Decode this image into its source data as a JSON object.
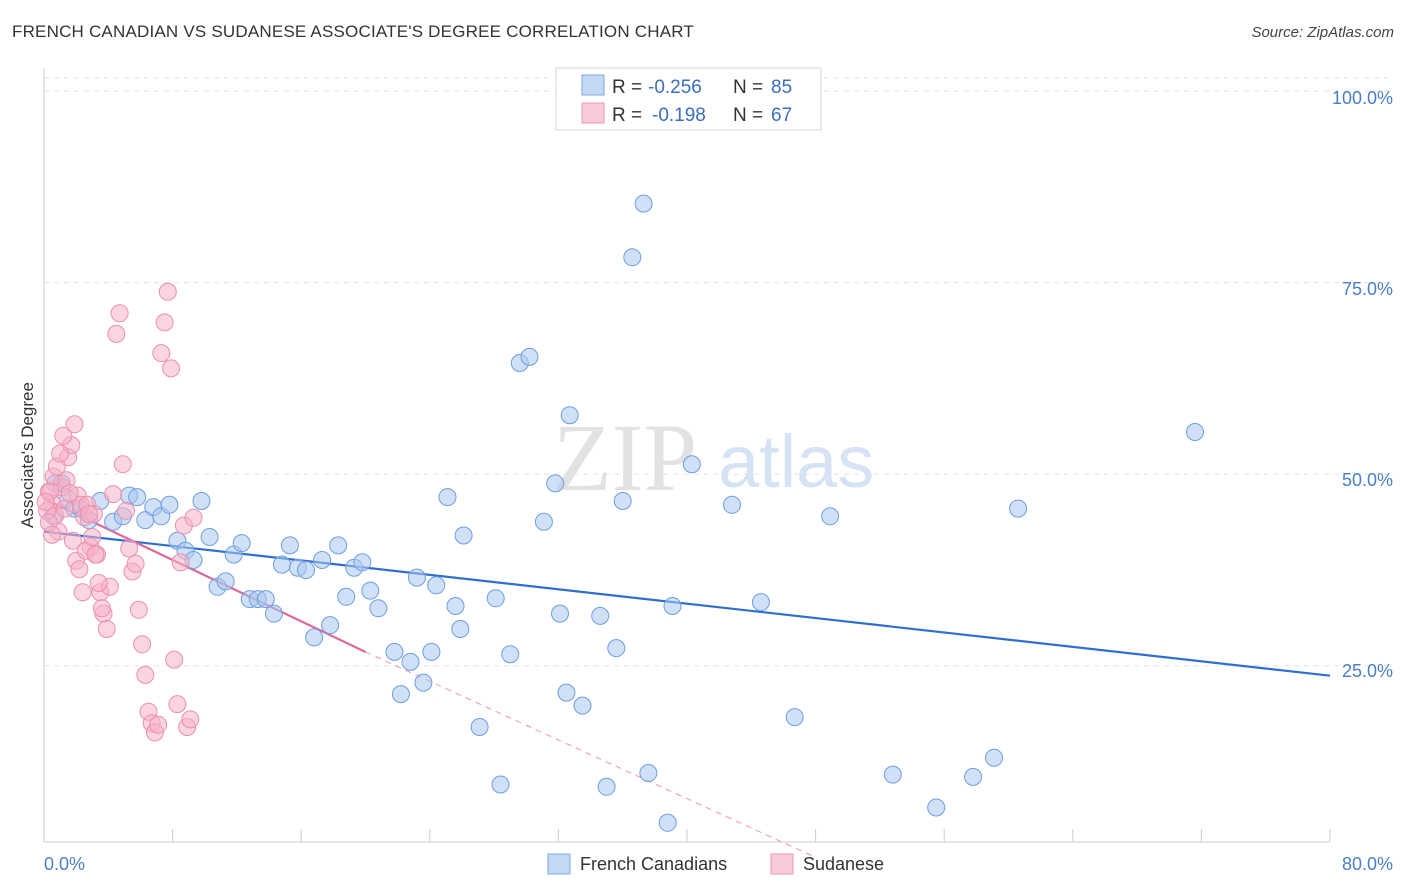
{
  "header": {
    "title": "FRENCH CANADIAN VS SUDANESE ASSOCIATE'S DEGREE CORRELATION CHART",
    "source": "Source: ZipAtlas.com"
  },
  "watermark": {
    "zip": "ZIP",
    "atlas": "atlas"
  },
  "legend": {
    "r_label": "R =",
    "n_label": "N =",
    "rows": [
      {
        "r": "-0.256",
        "n": "85",
        "color": "#a9c8f0"
      },
      {
        "r": "-0.198",
        "n": "67",
        "color": "#f5b3c8"
      }
    ]
  },
  "bottom_legend": [
    "French Canadians",
    "Sudanese"
  ],
  "x_tick_labels": [
    "0.0%",
    "80.0%"
  ],
  "y_tick_labels": [
    "100.0%",
    "75.0%",
    "50.0%",
    "25.0%"
  ],
  "chart_data": {
    "type": "scatter",
    "title": "FRENCH CANADIAN VS SUDANESE ASSOCIATE'S DEGREE CORRELATION CHART",
    "xlabel": "",
    "ylabel": "Associate's Degree",
    "xlim": [
      0,
      80
    ],
    "ylim": [
      2,
      103
    ],
    "y_ticks": [
      25,
      50,
      75,
      100
    ],
    "grid": true,
    "legend_position": "top-center",
    "series": [
      {
        "name": "French Canadians",
        "color": "#a9c8f0",
        "stroke": "#6f9ede",
        "line_color": "#2f6fcf",
        "trend": {
          "x": [
            0,
            80
          ],
          "y": [
            42.5,
            23.7
          ],
          "dashed_extension": false
        },
        "points": [
          [
            0.7,
            48.8
          ],
          [
            1.5,
            46.8
          ],
          [
            1.9,
            45.5
          ],
          [
            2.3,
            45.5
          ],
          [
            3.5,
            46.5
          ],
          [
            4.3,
            43.8
          ],
          [
            4.9,
            44.5
          ],
          [
            5.3,
            47.2
          ],
          [
            5.8,
            47.0
          ],
          [
            6.3,
            44.0
          ],
          [
            6.8,
            45.7
          ],
          [
            7.3,
            44.5
          ],
          [
            7.8,
            46.0
          ],
          [
            8.3,
            41.3
          ],
          [
            8.8,
            40.0
          ],
          [
            9.3,
            38.8
          ],
          [
            9.8,
            46.5
          ],
          [
            10.3,
            41.8
          ],
          [
            10.8,
            35.3
          ],
          [
            11.3,
            36.0
          ],
          [
            11.8,
            39.5
          ],
          [
            12.3,
            41.0
          ],
          [
            12.8,
            33.7
          ],
          [
            13.3,
            33.7
          ],
          [
            13.8,
            33.7
          ],
          [
            14.3,
            31.8
          ],
          [
            14.8,
            38.2
          ],
          [
            15.3,
            40.7
          ],
          [
            15.8,
            37.8
          ],
          [
            16.3,
            37.5
          ],
          [
            16.8,
            28.7
          ],
          [
            17.3,
            38.8
          ],
          [
            17.8,
            30.3
          ],
          [
            18.3,
            40.7
          ],
          [
            18.8,
            34.0
          ],
          [
            19.3,
            37.8
          ],
          [
            19.8,
            38.5
          ],
          [
            20.3,
            34.8
          ],
          [
            20.8,
            32.5
          ],
          [
            21.8,
            26.8
          ],
          [
            22.2,
            21.3
          ],
          [
            22.8,
            25.5
          ],
          [
            23.2,
            36.5
          ],
          [
            23.6,
            22.8
          ],
          [
            24.1,
            26.8
          ],
          [
            24.4,
            35.5
          ],
          [
            25.1,
            47.0
          ],
          [
            25.6,
            32.8
          ],
          [
            25.9,
            29.8
          ],
          [
            26.1,
            42.0
          ],
          [
            27.1,
            17.0
          ],
          [
            28.1,
            33.8
          ],
          [
            28.4,
            9.5
          ],
          [
            29.0,
            26.5
          ],
          [
            29.6,
            64.5
          ],
          [
            30.2,
            65.3
          ],
          [
            31.1,
            43.8
          ],
          [
            31.8,
            48.8
          ],
          [
            32.1,
            31.8
          ],
          [
            32.5,
            21.5
          ],
          [
            32.7,
            57.7
          ],
          [
            33.5,
            19.8
          ],
          [
            34.6,
            31.5
          ],
          [
            35.0,
            9.2
          ],
          [
            35.6,
            27.3
          ],
          [
            36.0,
            46.5
          ],
          [
            36.6,
            78.3
          ],
          [
            37.3,
            85.3
          ],
          [
            37.6,
            11.0
          ],
          [
            38.8,
            4.5
          ],
          [
            39.1,
            32.8
          ],
          [
            40.3,
            51.3
          ],
          [
            42.8,
            46.0
          ],
          [
            44.6,
            33.3
          ],
          [
            46.7,
            18.3
          ],
          [
            48.9,
            44.5
          ],
          [
            52.8,
            10.8
          ],
          [
            55.5,
            6.5
          ],
          [
            57.8,
            10.5
          ],
          [
            59.1,
            13.0
          ],
          [
            60.6,
            45.5
          ],
          [
            71.6,
            55.5
          ],
          [
            1.1,
            48.8
          ],
          [
            0.6,
            44.5
          ],
          [
            2.8,
            44.0
          ]
        ]
      },
      {
        "name": "Sudanese",
        "color": "#f5b3c8",
        "stroke": "#ec8fae",
        "line_color": "#e0679a",
        "trend": {
          "x": [
            0,
            20
          ],
          "y": [
            46.8,
            26.8
          ],
          "dashed_extension": true,
          "dash_to": [
            48,
            0
          ]
        },
        "points": [
          [
            0.3,
            47.7
          ],
          [
            0.5,
            46.2
          ],
          [
            0.7,
            44.6
          ],
          [
            0.9,
            42.5
          ],
          [
            1.1,
            48.3
          ],
          [
            1.3,
            45.5
          ],
          [
            1.5,
            52.2
          ],
          [
            1.7,
            53.8
          ],
          [
            1.9,
            56.5
          ],
          [
            2.1,
            47.2
          ],
          [
            2.3,
            46.0
          ],
          [
            2.5,
            44.4
          ],
          [
            2.7,
            46.0
          ],
          [
            2.9,
            40.5
          ],
          [
            3.1,
            44.8
          ],
          [
            3.3,
            39.5
          ],
          [
            3.5,
            34.6
          ],
          [
            3.7,
            31.8
          ],
          [
            3.9,
            29.8
          ],
          [
            4.1,
            35.3
          ],
          [
            4.3,
            47.4
          ],
          [
            4.5,
            68.3
          ],
          [
            4.7,
            71.0
          ],
          [
            4.9,
            51.3
          ],
          [
            5.1,
            45.2
          ],
          [
            5.3,
            40.3
          ],
          [
            5.5,
            37.3
          ],
          [
            5.7,
            38.3
          ],
          [
            5.9,
            32.3
          ],
          [
            6.1,
            27.8
          ],
          [
            6.3,
            23.8
          ],
          [
            6.5,
            19.0
          ],
          [
            6.7,
            17.5
          ],
          [
            6.9,
            16.3
          ],
          [
            7.1,
            17.3
          ],
          [
            7.3,
            65.8
          ],
          [
            7.5,
            69.8
          ],
          [
            7.7,
            73.8
          ],
          [
            7.9,
            63.8
          ],
          [
            8.1,
            25.8
          ],
          [
            8.3,
            20.0
          ],
          [
            8.5,
            38.5
          ],
          [
            8.7,
            43.3
          ],
          [
            8.9,
            17.0
          ],
          [
            9.1,
            18.0
          ],
          [
            9.3,
            44.3
          ],
          [
            0.2,
            45.2
          ],
          [
            0.4,
            47.8
          ],
          [
            0.6,
            49.7
          ],
          [
            0.8,
            51.0
          ],
          [
            1.0,
            52.7
          ],
          [
            1.2,
            55.0
          ],
          [
            1.4,
            49.2
          ],
          [
            1.6,
            47.5
          ],
          [
            1.8,
            41.3
          ],
          [
            2.0,
            38.7
          ],
          [
            2.2,
            37.6
          ],
          [
            2.4,
            34.6
          ],
          [
            2.6,
            40.0
          ],
          [
            2.8,
            44.8
          ],
          [
            3.0,
            41.8
          ],
          [
            3.2,
            39.5
          ],
          [
            3.4,
            35.8
          ],
          [
            3.6,
            32.5
          ],
          [
            0.1,
            46.4
          ],
          [
            0.3,
            43.7
          ],
          [
            0.5,
            42.1
          ]
        ]
      }
    ]
  }
}
